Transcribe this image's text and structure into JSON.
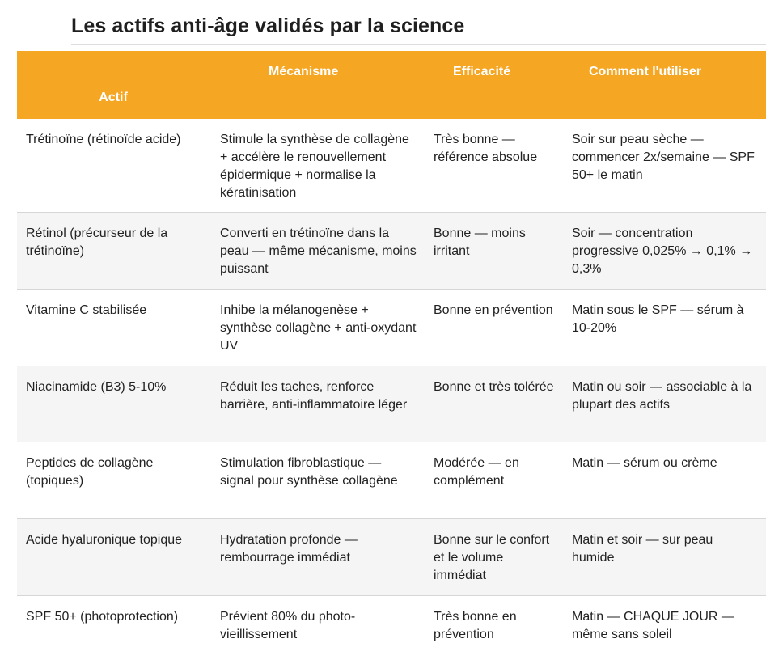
{
  "page": {
    "title": "Les actifs anti-âge validés par la science"
  },
  "table": {
    "headers": [
      "Actif",
      "Mécanisme",
      "Efficacité",
      "Comment l'utiliser"
    ],
    "rows": [
      [
        "Trétinoïne (rétinoïde acide)",
        "Stimule la synthèse de collagène + accélère le renouvellement épidermique + normalise la kératinisation",
        "Très bonne — référence absolue",
        "Soir sur peau sèche — commencer 2x/semaine — SPF 50+ le matin"
      ],
      [
        "Rétinol (précurseur de la trétinoïne)",
        "Converti en trétinoïne dans la peau — même mécanisme, moins puissant",
        "Bonne — moins irritant",
        "Soir — concentration progressive 0,025% → 0,1% → 0,3%"
      ],
      [
        "Vitamine C stabilisée",
        "Inhibe la mélanogenèse + synthèse collagène + anti-oxydant UV",
        "Bonne en prévention",
        "Matin sous le SPF — sérum à 10-20%"
      ],
      [
        "Niacinamide (B3) 5-10%",
        "Réduit les taches, renforce barrière, anti-inflammatoire léger",
        "Bonne et très tolérée",
        "Matin ou soir — associable à la plupart des actifs"
      ],
      [
        "Peptides de collagène (topiques)",
        "Stimulation fibroblastique — signal pour synthèse collagène",
        "Modérée — en complément",
        "Matin — sérum ou crème"
      ],
      [
        "Acide hyaluronique topique",
        "Hydratation profonde — rembourrage immédiat",
        "Bonne sur le confort et le volume immédiat",
        "Matin et soir — sur peau humide"
      ],
      [
        "SPF 50+ (photoprotection)",
        "Prévient 80% du photo-vieillissement",
        "Très bonne en prévention",
        "Matin — CHAQUE JOUR — même sans soleil"
      ]
    ]
  },
  "colors": {
    "header_background": "#f5a623",
    "header_text": "#ffffff",
    "alt_row_background": "#f5f5f5"
  }
}
